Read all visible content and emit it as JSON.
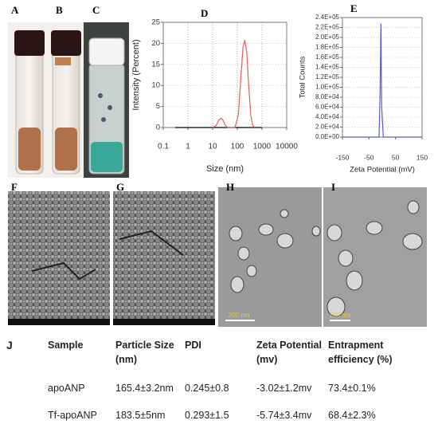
{
  "panel_labels": [
    "A",
    "B",
    "C",
    "D",
    "E",
    "F",
    "G",
    "H",
    "I",
    "J"
  ],
  "chart_data": [
    {
      "type": "line",
      "xlabel": "Size (nm)",
      "ylabel": "Intensity (Percent)",
      "xscale": "log",
      "xlim": [
        0.1,
        10000
      ],
      "xticks": [
        0.1,
        1,
        10,
        100,
        1000,
        10000
      ],
      "ylim": [
        0,
        25
      ],
      "yticks": [
        0,
        5,
        10,
        15,
        20,
        25
      ],
      "grid": true,
      "series": [
        {
          "color": "#000000",
          "x": [
            0.3,
            1000
          ],
          "values": [
            0,
            0
          ]
        },
        {
          "color": "#e06060",
          "x": [
            10,
            14,
            18,
            22,
            26,
            32,
            40,
            80,
            110,
            140,
            170,
            200,
            240,
            290,
            350,
            420,
            520
          ],
          "values": [
            0,
            0.5,
            1.8,
            2.2,
            1.8,
            0.6,
            0,
            0,
            3,
            12,
            19,
            20.8,
            18,
            10,
            3,
            0.5,
            0
          ]
        }
      ]
    },
    {
      "type": "line",
      "xlabel": "Zeta Potential (mV)",
      "ylabel": "Total Counts",
      "xlim": [
        -150,
        150
      ],
      "xticks": [
        -150,
        -50,
        50,
        150
      ],
      "ylim": [
        0,
        240000
      ],
      "yticks": [
        {
          "value": 0,
          "label": "0.0E+00"
        },
        {
          "value": 20000,
          "label": "2.0E+04"
        },
        {
          "value": 40000,
          "label": "4.0E+04"
        },
        {
          "value": 60000,
          "label": "6.0E+04"
        },
        {
          "value": 80000,
          "label": "8.0E+04"
        },
        {
          "value": 100000,
          "label": "1.0E+05"
        },
        {
          "value": 120000,
          "label": "1.2E+05"
        },
        {
          "value": 140000,
          "label": "1.4E+05"
        },
        {
          "value": 160000,
          "label": "1.6E+05"
        },
        {
          "value": 180000,
          "label": "1.8E+05"
        },
        {
          "value": 200000,
          "label": "2.0E+05"
        },
        {
          "value": 220000,
          "label": "2.2E+05"
        },
        {
          "value": 240000,
          "label": "2.4E+05"
        }
      ],
      "grid": true,
      "series": [
        {
          "color": "#5a5ad6",
          "x": [
            -150,
            -20,
            -12,
            -8,
            -5,
            -2,
            4,
            150
          ],
          "values": [
            0,
            0,
            0,
            90000,
            228000,
            60000,
            0,
            0
          ]
        }
      ]
    }
  ],
  "scale_bars": [
    "200 nm",
    "100 nm"
  ],
  "table": {
    "header": [
      "Sample",
      "Particle Size (nm)",
      "PDI",
      "Zeta Potential (mv)",
      "Entrapment efficiency (%)"
    ],
    "rows": [
      [
        "apoANP",
        "165.4±3.2nm",
        "0.245±0.8",
        "-3.02±1.2mv",
        "73.4±0.1%"
      ],
      [
        "Tf-apoANP",
        "183.5±5nm",
        "0.293±1.5",
        "-5.74±3.4mv",
        "68.4±2.3%"
      ]
    ]
  }
}
